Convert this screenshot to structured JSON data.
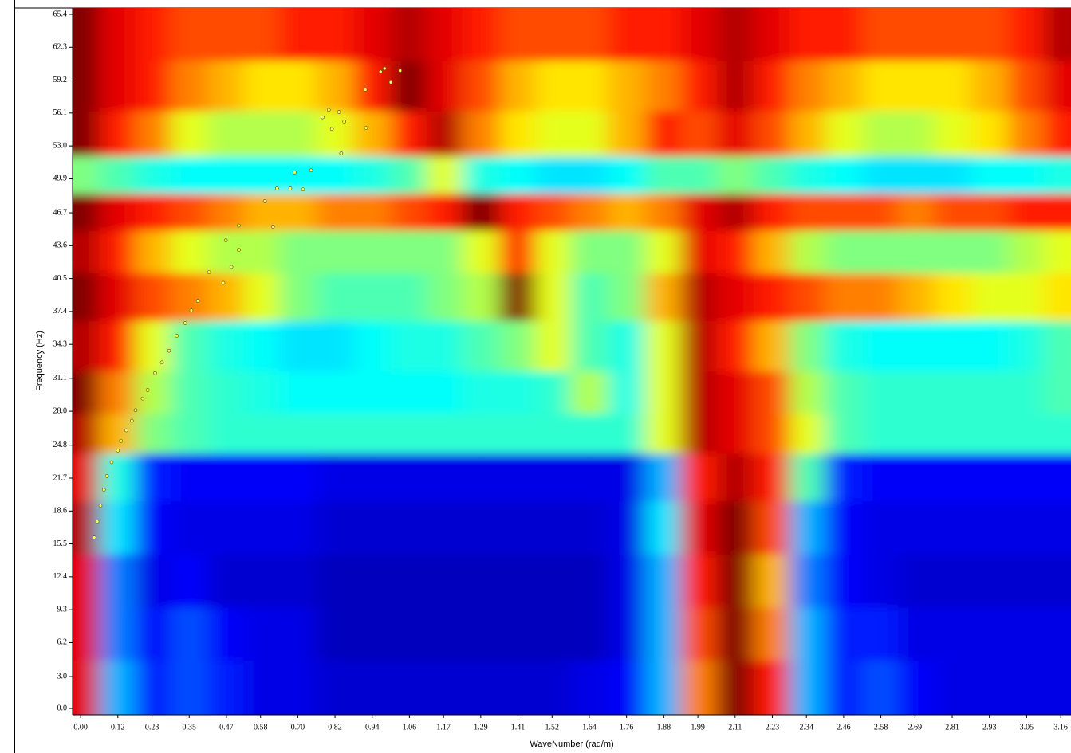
{
  "chart_data": {
    "type": "heatmap",
    "x_label": "WaveNumber (rad/m)",
    "y_label": "Frequency (Hz)",
    "xlim": [
      -0.026,
      3.193
    ],
    "ylim": [
      -0.6,
      66.0
    ],
    "xticks": [
      {
        "value": 0,
        "label": "0.00"
      },
      0.12,
      0.23,
      0.35,
      0.47,
      0.58,
      {
        "value": 0.7,
        "label": "0.70"
      },
      0.82,
      0.94,
      1.06,
      1.17,
      1.29,
      1.41,
      1.52,
      1.64,
      1.76,
      1.88,
      1.99,
      2.11,
      2.23,
      2.34,
      2.46,
      2.58,
      2.69,
      2.81,
      2.93,
      3.05,
      3.16
    ],
    "yticks": [
      {
        "value": 0,
        "label": "0.0"
      },
      {
        "value": 3,
        "label": "3.0"
      },
      6.2,
      9.3,
      12.4,
      15.5,
      18.6,
      21.7,
      24.8,
      {
        "value": 28,
        "label": "28.0"
      },
      31.1,
      34.3,
      37.4,
      40.5,
      43.6,
      46.7,
      49.9,
      {
        "value": 53,
        "label": "53.0"
      },
      56.1,
      59.2,
      62.3,
      65.4
    ],
    "x": [
      0,
      0.12,
      0.23,
      0.35,
      0.47,
      0.58,
      0.7,
      0.82,
      0.94,
      1.06,
      1.17,
      1.29,
      1.41,
      1.52,
      1.64,
      1.76,
      1.88,
      1.99,
      2.11,
      2.23,
      2.34,
      2.46,
      2.58,
      2.69,
      2.81,
      2.93,
      3.05,
      3.16
    ],
    "y": [
      63.5,
      58.5,
      54,
      50,
      47,
      43,
      39,
      34,
      29.5,
      26,
      22,
      17,
      12,
      7,
      2
    ],
    "z": [
      [
        1,
        0.9,
        0.85,
        0.8,
        0.8,
        0.8,
        0.85,
        0.85,
        0.9,
        0.95,
        0.9,
        0.85,
        0.8,
        0.8,
        0.8,
        0.85,
        0.85,
        0.9,
        0.95,
        0.9,
        0.85,
        0.85,
        0.8,
        0.8,
        0.8,
        0.8,
        0.85,
        0.95
      ],
      [
        1,
        0.9,
        0.85,
        0.75,
        0.7,
        0.65,
        0.65,
        0.7,
        0.85,
        1,
        0.9,
        0.8,
        0.7,
        0.65,
        0.65,
        0.7,
        0.75,
        0.85,
        0.95,
        0.85,
        0.75,
        0.7,
        0.65,
        0.65,
        0.65,
        0.7,
        0.8,
        0.9
      ],
      [
        1,
        0.85,
        0.75,
        0.6,
        0.55,
        0.55,
        0.55,
        0.6,
        0.7,
        0.85,
        0.95,
        0.75,
        0.65,
        0.6,
        0.6,
        0.7,
        0.85,
        0.8,
        0.9,
        0.8,
        0.7,
        0.6,
        0.55,
        0.55,
        0.6,
        0.65,
        0.75,
        0.85
      ],
      [
        0.5,
        0.45,
        0.4,
        0.38,
        0.38,
        0.38,
        0.38,
        0.38,
        0.4,
        0.45,
        0.6,
        0.4,
        0.38,
        0.35,
        0.35,
        0.38,
        0.45,
        0.45,
        0.5,
        0.45,
        0.4,
        0.38,
        0.35,
        0.35,
        0.35,
        0.38,
        0.38,
        0.4
      ],
      [
        1,
        0.9,
        0.85,
        0.8,
        0.75,
        0.7,
        0.7,
        0.75,
        0.75,
        0.8,
        0.85,
        1,
        0.85,
        0.8,
        0.75,
        0.7,
        0.75,
        0.9,
        0.95,
        0.85,
        0.8,
        0.8,
        0.8,
        0.75,
        0.8,
        0.8,
        0.85,
        0.85
      ],
      [
        0.95,
        0.85,
        0.7,
        0.6,
        0.55,
        0.55,
        0.5,
        0.5,
        0.5,
        0.5,
        0.5,
        0.6,
        0.85,
        0.6,
        0.5,
        0.5,
        0.6,
        0.9,
        0.85,
        0.7,
        0.55,
        0.5,
        0.5,
        0.5,
        0.5,
        0.5,
        0.55,
        0.6
      ],
      [
        1,
        0.9,
        0.8,
        0.75,
        0.7,
        0.6,
        0.5,
        0.45,
        0.45,
        0.45,
        0.5,
        0.55,
        1,
        0.6,
        0.45,
        0.5,
        0.7,
        0.95,
        0.9,
        0.85,
        0.8,
        0.75,
        0.75,
        0.7,
        0.65,
        0.6,
        0.6,
        0.65
      ],
      [
        0.95,
        0.85,
        0.6,
        0.45,
        0.4,
        0.38,
        0.35,
        0.35,
        0.38,
        0.4,
        0.4,
        0.45,
        0.5,
        0.6,
        0.45,
        0.4,
        0.6,
        0.95,
        0.85,
        0.7,
        0.5,
        0.4,
        0.38,
        0.38,
        0.38,
        0.38,
        0.4,
        0.45
      ],
      [
        1,
        0.75,
        0.55,
        0.45,
        0.42,
        0.4,
        0.38,
        0.38,
        0.38,
        0.38,
        0.38,
        0.4,
        0.4,
        0.42,
        0.55,
        0.4,
        0.6,
        0.95,
        0.9,
        0.8,
        0.55,
        0.45,
        0.42,
        0.42,
        0.42,
        0.42,
        0.42,
        0.45
      ],
      [
        0.95,
        0.7,
        0.5,
        0.45,
        0.42,
        0.42,
        0.42,
        0.42,
        0.42,
        0.42,
        0.42,
        0.42,
        0.42,
        0.42,
        0.42,
        0.42,
        0.6,
        0.95,
        0.9,
        0.8,
        0.6,
        0.45,
        0.42,
        0.42,
        0.42,
        0.42,
        0.42,
        0.42
      ],
      [
        0.9,
        0.4,
        0.15,
        0.12,
        0.12,
        0.12,
        0.12,
        0.1,
        0.1,
        0.1,
        0.1,
        0.1,
        0.1,
        0.1,
        0.1,
        0.1,
        0.3,
        0.85,
        0.95,
        0.85,
        0.45,
        0.15,
        0.12,
        0.12,
        0.12,
        0.12,
        0.12,
        0.12
      ],
      [
        0.95,
        0.35,
        0.12,
        0.1,
        0.1,
        0.1,
        0.1,
        0.08,
        0.08,
        0.08,
        0.08,
        0.08,
        0.08,
        0.08,
        0.08,
        0.1,
        0.35,
        0.9,
        1,
        0.8,
        0.3,
        0.12,
        0.1,
        0.1,
        0.1,
        0.1,
        0.1,
        0.1
      ],
      [
        0.9,
        0.25,
        0.1,
        0.12,
        0.08,
        0.08,
        0.08,
        0.06,
        0.06,
        0.06,
        0.06,
        0.06,
        0.06,
        0.06,
        0.06,
        0.1,
        0.3,
        0.85,
        1,
        0.7,
        0.25,
        0.12,
        0.1,
        0.08,
        0.08,
        0.08,
        0.08,
        0.08
      ],
      [
        0.9,
        0.25,
        0.12,
        0.2,
        0.12,
        0.1,
        0.1,
        0.06,
        0.06,
        0.06,
        0.06,
        0.06,
        0.06,
        0.06,
        0.06,
        0.1,
        0.3,
        0.8,
        1,
        0.75,
        0.3,
        0.15,
        0.15,
        0.1,
        0.1,
        0.1,
        0.1,
        0.1
      ],
      [
        0.9,
        0.3,
        0.15,
        0.2,
        0.15,
        0.1,
        0.1,
        0.08,
        0.08,
        0.08,
        0.08,
        0.08,
        0.08,
        0.08,
        0.1,
        0.12,
        0.3,
        0.75,
        1,
        0.85,
        0.3,
        0.15,
        0.2,
        0.12,
        0.1,
        0.1,
        0.1,
        0.1
      ]
    ],
    "points": {
      "color": "#ffff40",
      "x": [
        0.044,
        0.054,
        0.064,
        0.075,
        0.085,
        0.1,
        0.12,
        0.13,
        0.147,
        0.165,
        0.177,
        0.2,
        0.216,
        0.24,
        0.262,
        0.285,
        0.31,
        0.337,
        0.357,
        0.378,
        0.414,
        0.46,
        0.486,
        0.51,
        0.468,
        0.51,
        0.62,
        0.594,
        0.633,
        0.676,
        0.717,
        0.69,
        0.743,
        0.78,
        0.8,
        0.833,
        0.81,
        0.85,
        0.84,
        0.92,
        0.918,
        0.967,
        0.98,
        1.0,
        1.03
      ],
      "y": [
        16.1,
        17.6,
        19.1,
        20.6,
        21.9,
        23.2,
        24.3,
        25.2,
        26.2,
        27.1,
        28.1,
        29.2,
        30,
        31.6,
        32.6,
        33.7,
        35.1,
        36.3,
        37.5,
        38.4,
        41.1,
        40.1,
        41.6,
        43.2,
        44.1,
        45.5,
        45.4,
        47.8,
        49,
        49,
        48.9,
        50.5,
        50.7,
        55.7,
        56.4,
        56.2,
        54.6,
        55.3,
        52.3,
        54.7,
        58.3,
        60,
        60.3,
        59,
        60.1
      ]
    }
  }
}
